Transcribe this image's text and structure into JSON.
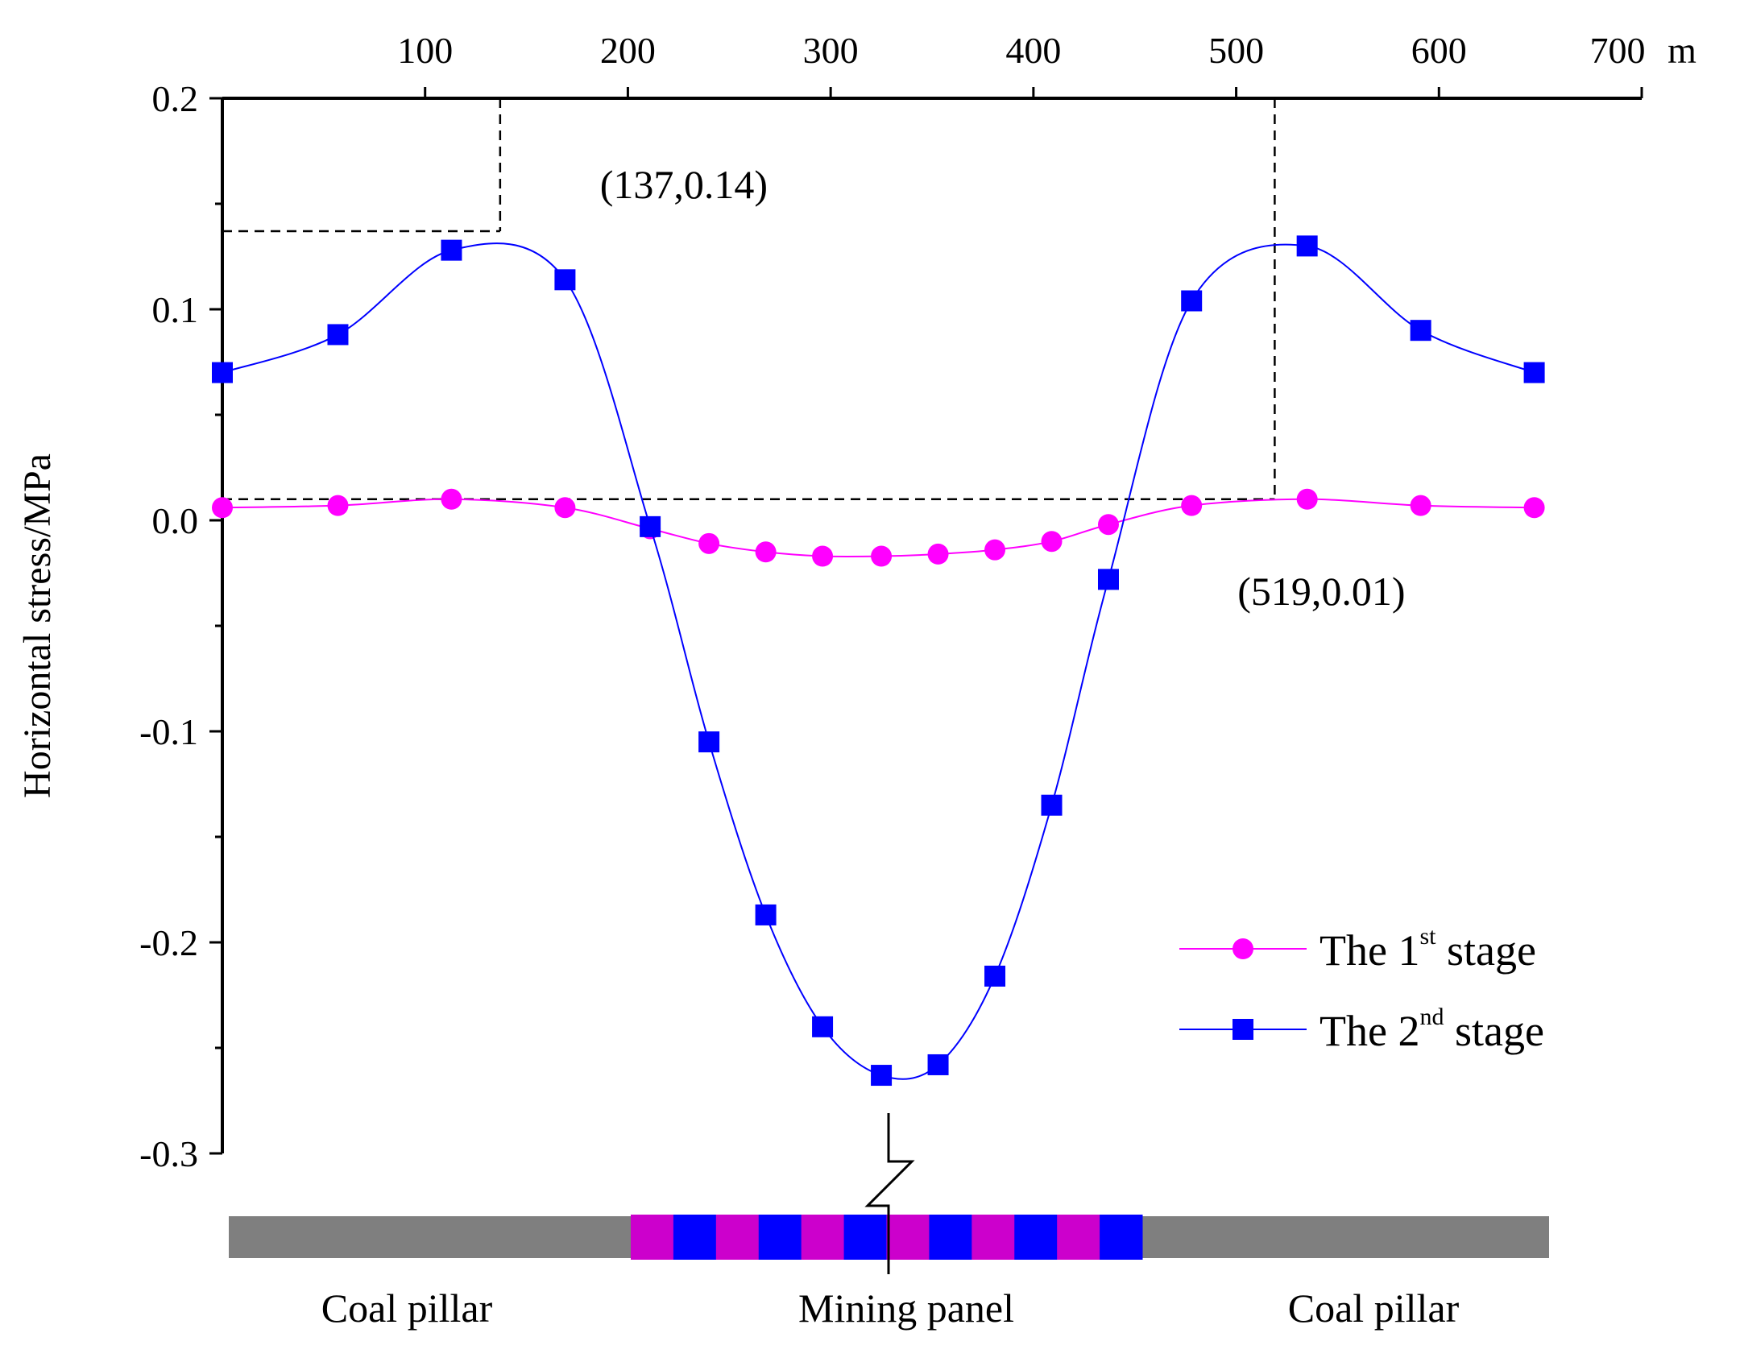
{
  "chart_data": {
    "type": "line",
    "ylabel": "Horizontal stress/MPa",
    "xunit": "m",
    "xlim": [
      0,
      700
    ],
    "ylim": [
      -0.3,
      0.2
    ],
    "xticks": [
      100,
      200,
      300,
      400,
      500,
      600,
      700
    ],
    "yticks": [
      0.2,
      0.1,
      0.0,
      -0.1,
      -0.2,
      -0.3
    ],
    "ytick_labels": [
      "0.2",
      "0.1",
      "0.0",
      "-0.1",
      "-0.2",
      "-0.3"
    ],
    "series": [
      {
        "name": "The 1st stage",
        "legend_base": "The 1",
        "legend_sup": "st",
        "legend_tail": " stage",
        "color": "#ff00ff",
        "marker": "circle",
        "x": [
          0,
          57,
          113,
          169,
          211,
          240,
          268,
          296,
          325,
          353,
          381,
          409,
          437,
          478,
          535,
          591,
          647
        ],
        "y": [
          0.006,
          0.007,
          0.01,
          0.006,
          -0.004,
          -0.011,
          -0.015,
          -0.017,
          -0.017,
          -0.016,
          -0.014,
          -0.01,
          -0.002,
          0.007,
          0.01,
          0.007,
          0.006
        ]
      },
      {
        "name": "The 2nd stage",
        "legend_base": "The 2",
        "legend_sup": "nd",
        "legend_tail": " stage",
        "color": "#0000ff",
        "marker": "square",
        "x": [
          0,
          57,
          113,
          169,
          211,
          240,
          268,
          296,
          325,
          353,
          381,
          409,
          437,
          478,
          535,
          591,
          647
        ],
        "y": [
          0.07,
          0.088,
          0.128,
          0.114,
          -0.003,
          -0.105,
          -0.187,
          -0.24,
          -0.263,
          -0.258,
          -0.216,
          -0.135,
          -0.028,
          0.104,
          0.13,
          0.09,
          0.07
        ]
      }
    ],
    "annotations": [
      {
        "text": "(137,0.14)",
        "x": 137,
        "y": 0.137
      },
      {
        "text": "(519,0.01)",
        "x": 519,
        "y": 0.01
      }
    ],
    "bottom_labels": [
      "Coal pillar",
      "Mining panel",
      "Coal pillar"
    ],
    "panel_colors": [
      "#cc00cc",
      "#0000ff"
    ],
    "pillar_color": "#7f7f7f"
  }
}
